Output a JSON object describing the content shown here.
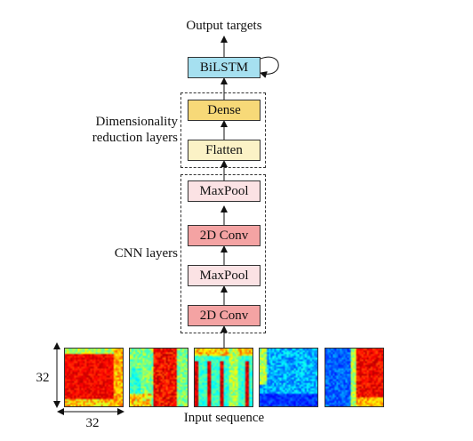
{
  "diagram": {
    "output_label": "Output targets",
    "input_label": "Input sequence",
    "groups": {
      "dimensionality": {
        "label_line1": "Dimensionality",
        "label_line2": "reduction layers"
      },
      "cnn": {
        "label": "CNN layers"
      }
    },
    "layers": {
      "bilstm": {
        "label": "BiLSTM",
        "color": "#a6e0f0"
      },
      "dense": {
        "label": "Dense",
        "color": "#f7d978"
      },
      "flatten": {
        "label": "Flatten",
        "color": "#fbf2c6"
      },
      "maxpool_top": {
        "label": "MaxPool",
        "color": "#fbe2e4"
      },
      "conv_top": {
        "label": "2D Conv",
        "color": "#f4a3a3"
      },
      "maxpool_bottom": {
        "label": "MaxPool",
        "color": "#fbe2e4"
      },
      "conv_bottom": {
        "label": "2D Conv",
        "color": "#f4a3a3"
      }
    },
    "dimensions": {
      "height_label": "32",
      "width_label": "32"
    },
    "spectrograms": [
      {
        "name": "frame-1",
        "pattern": "hot-center"
      },
      {
        "name": "frame-2",
        "pattern": "hot-right-bands"
      },
      {
        "name": "frame-3",
        "pattern": "vertical-streaks"
      },
      {
        "name": "frame-4",
        "pattern": "cool-noise"
      },
      {
        "name": "frame-5",
        "pattern": "cool-left-hot-right"
      }
    ]
  }
}
